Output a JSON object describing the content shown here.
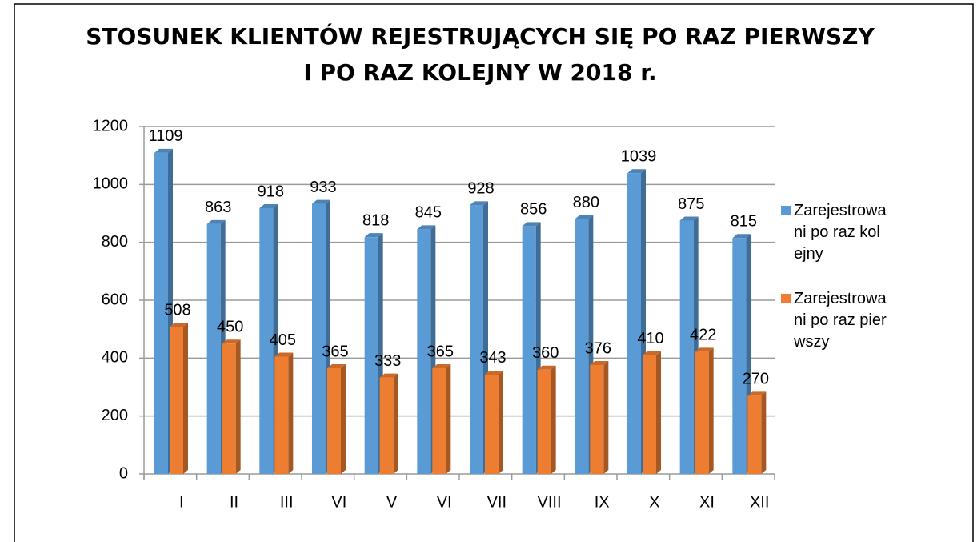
{
  "chart_data": {
    "type": "bar3d",
    "title": [
      "STOSUNEK KLIENTÓW REJESTRUJĄCYCH SIĘ PO RAZ PIERWSZY",
      "I PO RAZ KOLEJNY W 2018 r."
    ],
    "categories": [
      "I",
      "II",
      "III",
      "VI",
      "V",
      "VI",
      "VII",
      "VIII",
      "IX",
      "X",
      "XI",
      "XII"
    ],
    "series": [
      {
        "name": "Zarejestrowani po raz kolejny",
        "color": "#5b9bd5",
        "values": [
          1109,
          863,
          918,
          933,
          818,
          845,
          928,
          856,
          880,
          1039,
          875,
          815
        ]
      },
      {
        "name": "Zarejestrowani po raz pierwszy",
        "color": "#ed7d31",
        "values": [
          508,
          450,
          405,
          365,
          333,
          365,
          343,
          360,
          376,
          410,
          422,
          270
        ]
      }
    ],
    "ylim": [
      0,
      1200
    ],
    "yticks": [
      0,
      200,
      400,
      600,
      800,
      1000,
      1200
    ],
    "grid": true,
    "legend": "right"
  }
}
